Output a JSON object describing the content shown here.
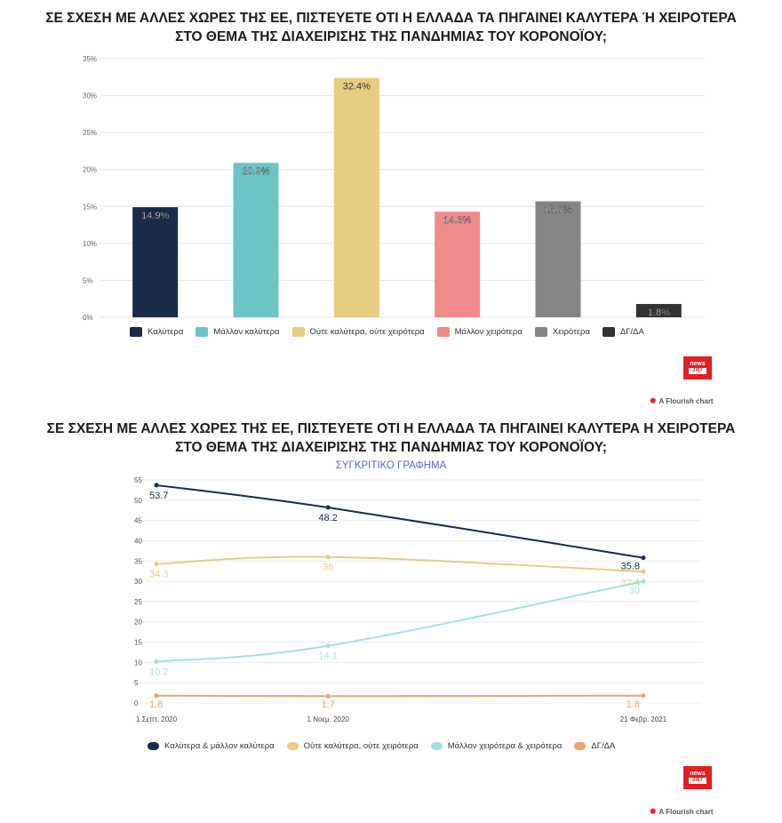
{
  "chart1_title_line1": "ΣΕ ΣΧΕΣΗ ΜΕ ΑΛΛΕΣ ΧΩΡΕΣ ΤΗΣ ΕΕ, ΠΙΣΤΕΥΕΤΕ ΟΤΙ Η ΕΛΛΑΔΑ ΤΑ ΠΗΓΑΙΝΕΙ ΚΑΛΥΤΕΡΑ Ή ΧΕΙΡΟΤΕΡΑ",
  "chart1_title_line2": "ΣΤΟ ΘΕΜΑ ΤΗΣ ΔΙΑΧΕΙΡΙΣΗΣ ΤΗΣ ΠΑΝΔΗΜΙΑΣ ΤΟΥ ΚΟΡΟΝΟΪΟΥ;",
  "chart2_title_line1": "ΣΕ ΣΧΕΣΗ ΜΕ ΑΛΛΕΣ ΧΩΡΕΣ ΤΗΣ ΕΕ, ΠΙΣΤΕΥΕΤΕ ΟΤΙ Η ΕΛΛΑΔΑ ΤΑ ΠΗΓΑΙΝΕΙ ΚΑΛΥΤΕΡΑ Η ΧΕΙΡΟΤΕΡΑ",
  "chart2_title_line2": "ΣΤΟ ΘΕΜΑ ΤΗΣ ΔΙΑΧΕΙΡΙΣΗΣ ΤΗΣ ΠΑΝΔΗΜΙΑΣ ΤΟΥ ΚΟΡΟΝΟΪΟΥ;",
  "chart2_subtitle": "ΣΥΓΚΡΙΤΙΚΟ ΓΡΑΦΗΜΑ",
  "flourish_label": "A Flourish chart",
  "badge_text": "news",
  "badge_sub": "24|7",
  "chart_data": [
    {
      "type": "bar",
      "title": "ΣΕ ΣΧΕΣΗ ΜΕ ΑΛΛΕΣ ΧΩΡΕΣ ΤΗΣ ΕΕ, ΠΙΣΤΕΥΕΤΕ ΟΤΙ Η ΕΛΛΑΔΑ ΤΑ ΠΗΓΑΙΝΕΙ ΚΑΛΥΤΕΡΑ Ή ΧΕΙΡΟΤΕΡΑ ΣΤΟ ΘΕΜΑ ΤΗΣ ΔΙΑΧΕΙΡΙΣΗΣ ΤΗΣ ΠΑΝΔΗΜΙΑΣ ΤΟΥ ΚΟΡΟΝΟΪΟΥ;",
      "categories": [
        "Καλύτερα",
        "Μάλλον καλύτερα",
        "Ούτε καλύτερα, ούτε χειρότερα",
        "Μάλλον χειρότερα",
        "Χειρότερα",
        "ΔΓ/ΔΑ"
      ],
      "values": [
        14.9,
        20.9,
        32.4,
        14.3,
        15.7,
        1.8
      ],
      "value_labels": [
        "14.9%",
        "20.9%",
        "32.4%",
        "14.3%",
        "15.7%",
        "1.8%"
      ],
      "colors": [
        "#1a2a4a",
        "#6cc5c5",
        "#e8cc80",
        "#f28a8a",
        "#858585",
        "#333333"
      ],
      "yticks": [
        "0%",
        "5%",
        "10%",
        "15%",
        "20%",
        "25%",
        "30%",
        "35%"
      ],
      "ylim": [
        0,
        35
      ],
      "legend": "bottom"
    },
    {
      "type": "line",
      "title": "ΣΕ ΣΧΕΣΗ ΜΕ ΑΛΛΕΣ ΧΩΡΕΣ ΤΗΣ ΕΕ, ΠΙΣΤΕΥΕΤΕ ΟΤΙ Η ΕΛΛΑΔΑ ΤΑ ΠΗΓΑΙΝΕΙ ΚΑΛΥΤΕΡΑ Η ΧΕΙΡΟΤΕΡΑ ΣΤΟ ΘΕΜΑ ΤΗΣ ΔΙΑΧΕΙΡΙΣΗΣ ΤΗΣ ΠΑΝΔΗΜΙΑΣ ΤΟΥ ΚΟΡΟΝΟΪΟΥ;",
      "subtitle": "ΣΥΓΚΡΙΤΙΚΟ ΓΡΑΦΗΜΑ",
      "x": [
        "1 Σεπτ. 2020",
        "1 Νοεμ. 2020",
        "21 Φεβρ. 2021"
      ],
      "x_position_days": [
        0,
        61,
        173
      ],
      "series": [
        {
          "name": "Καλύτερα & μάλλον καλύτερα",
          "color": "#1a2a4a",
          "values": [
            53.7,
            48.2,
            35.8
          ],
          "labels": [
            "53.7",
            "48.2",
            "35.8"
          ]
        },
        {
          "name": "Ούτε καλύτερα, ούτε χειρότερα",
          "color": "#e8cc80",
          "values": [
            34.3,
            36,
            32.4
          ],
          "labels": [
            "34.3",
            "36",
            "32.4"
          ]
        },
        {
          "name": "Μάλλον χειρότερα & χειρότερα",
          "color": "#a7dfe0",
          "values": [
            10.2,
            14.1,
            30
          ],
          "labels": [
            "10.2",
            "14.1",
            "30"
          ]
        },
        {
          "name": "ΔΓ/ΔΑ",
          "color": "#f0a070",
          "values": [
            1.8,
            1.7,
            1.8
          ],
          "labels": [
            "1.8",
            "1.7",
            "1.8"
          ]
        }
      ],
      "yticks": [
        "0",
        "5",
        "10",
        "15",
        "20",
        "25",
        "30",
        "35",
        "40",
        "45",
        "50",
        "55"
      ],
      "ylim": [
        0,
        55
      ],
      "legend": "bottom"
    }
  ]
}
